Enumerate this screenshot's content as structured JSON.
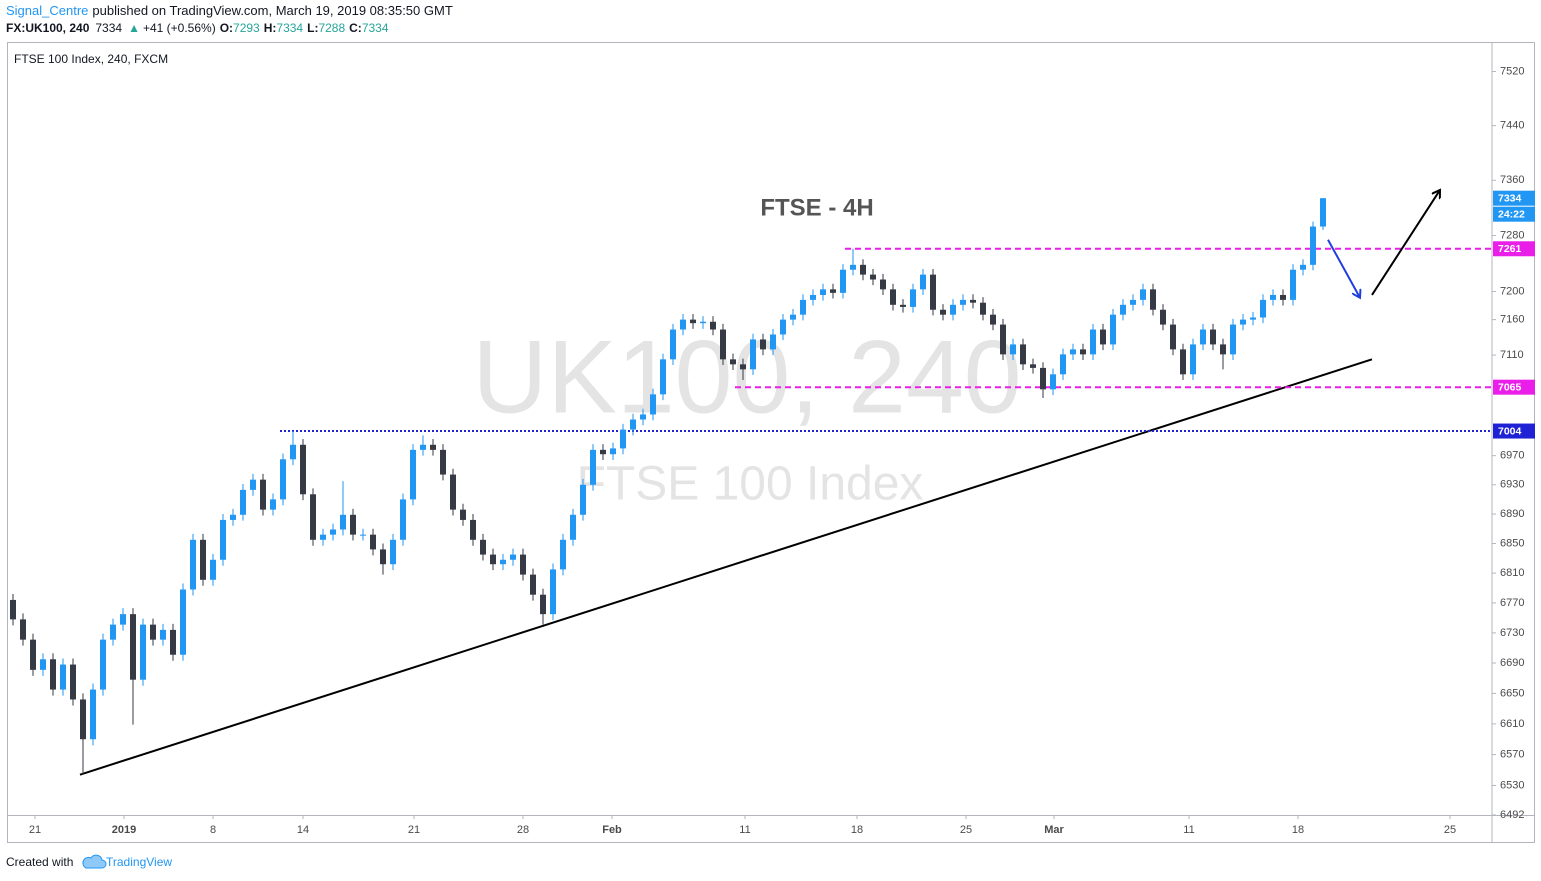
{
  "header": {
    "author": "Signal_Centre",
    "published": "published on TradingView.com, March 19, 2019 08:35:50 GMT",
    "symbol": "FX:UK100, 240",
    "last": 7334,
    "arrow": "▲",
    "change": "+41 (+0.56%)",
    "ohlc": [
      {
        "label": "O:",
        "value": 7293
      },
      {
        "label": "H:",
        "value": 7334
      },
      {
        "label": "L:",
        "value": 7288
      },
      {
        "label": "C:",
        "value": 7334
      }
    ]
  },
  "footer": {
    "text": "Created with",
    "brand": "TradingView"
  },
  "chart_data": {
    "type": "candlestick",
    "title": "FTSE - 4H",
    "series_label": "FTSE 100 Index, 240, FXCM",
    "watermark": [
      "UK100, 240",
      "FTSE 100 Index"
    ],
    "up_color": "#2196f3",
    "down_color": "#363a45",
    "scale": "log",
    "countdown": "24:22",
    "xlim": [
      0,
      148.4
    ],
    "ylim": [
      6492,
      7564
    ],
    "xticks": [
      {
        "value": 2.7,
        "label": "21"
      },
      {
        "value": 11.6,
        "label": "2019"
      },
      {
        "value": 20.5,
        "label": "8"
      },
      {
        "value": 29.5,
        "label": "14"
      },
      {
        "value": 40.6,
        "label": "21"
      },
      {
        "value": 51.5,
        "label": "28"
      },
      {
        "value": 60.4,
        "label": "Feb"
      },
      {
        "value": 73.7,
        "label": "11"
      },
      {
        "value": 84.9,
        "label": "18"
      },
      {
        "value": 95.8,
        "label": "25"
      },
      {
        "value": 104.6,
        "label": "Mar"
      },
      {
        "value": 118.1,
        "label": "11"
      },
      {
        "value": 129,
        "label": "18"
      },
      {
        "value": 144.2,
        "label": "25"
      }
    ],
    "yticks": [
      6492,
      6530,
      6570,
      6610,
      6650,
      6690,
      6730,
      6770,
      6810,
      6850,
      6890,
      6930,
      6970,
      7110,
      7160,
      7200,
      7280,
      7360,
      7440,
      7520
    ],
    "x": [
      0.5,
      1.5,
      2.5,
      3.5,
      4.5,
      5.5,
      6.5,
      7.5,
      8.5,
      9.5,
      10.5,
      11.5,
      12.5,
      13.5,
      14.5,
      15.5,
      16.5,
      17.5,
      18.5,
      19.5,
      20.5,
      21.5,
      22.5,
      23.5,
      24.5,
      25.5,
      26.5,
      27.5,
      28.5,
      29.5,
      30.5,
      31.5,
      32.5,
      33.5,
      34.5,
      35.5,
      36.5,
      37.5,
      38.5,
      39.5,
      40.5,
      41.5,
      42.5,
      43.5,
      44.5,
      45.5,
      46.5,
      47.5,
      48.5,
      49.5,
      50.5,
      51.5,
      52.5,
      53.5,
      54.5,
      55.5,
      56.5,
      57.5,
      58.5,
      59.5,
      60.5,
      61.5,
      62.5,
      63.5,
      64.5,
      65.5,
      66.5,
      67.5,
      68.5,
      69.5,
      70.5,
      71.5,
      72.5,
      73.5,
      74.5,
      75.5,
      76.5,
      77.5,
      78.5,
      79.5,
      80.5,
      81.5,
      82.5,
      83.5,
      84.5,
      85.5,
      86.5,
      87.5,
      88.5,
      89.5,
      90.5,
      91.5,
      92.5,
      93.5,
      94.5,
      95.5,
      96.5,
      97.5,
      98.5,
      99.5,
      100.5,
      101.5,
      102.5,
      103.5,
      104.5,
      105.5,
      106.5,
      107.5,
      108.5,
      109.5,
      110.5,
      111.5,
      112.5,
      113.5,
      114.5,
      115.5,
      116.5,
      117.5,
      118.5,
      119.5,
      120.5,
      121.5,
      122.5,
      123.5,
      124.5,
      125.5,
      126.5,
      127.5,
      128.5,
      129.5,
      130.5,
      131.5
    ],
    "open": [
      6774,
      6748,
      6721,
      6681,
      6695,
      6655,
      6688,
      6642,
      6590,
      6655,
      6721,
      6741,
      6755,
      6668,
      6741,
      6721,
      6734,
      6701,
      6788,
      6855,
      6801,
      6828,
      6882,
      6889,
      6923,
      6937,
      6896,
      6910,
      6965,
      6985,
      6917,
      6855,
      6862,
      6869,
      6889,
      6862,
      6862,
      6842,
      6822,
      6855,
      6910,
      6978,
      6985,
      6978,
      6944,
      6896,
      6882,
      6855,
      6835,
      6822,
      6828,
      6835,
      6808,
      6781,
      6755,
      6815,
      6855,
      6889,
      6930,
      6978,
      6972,
      6980,
      7006,
      7020,
      7027,
      7055,
      7104,
      7146,
      7160,
      7155,
      7157,
      7146,
      7104,
      7097,
      7090,
      7132,
      7118,
      7139,
      7160,
      7167,
      7188,
      7195,
      7203,
      7198,
      7231,
      7238,
      7224,
      7217,
      7203,
      7181,
      7178,
      7203,
      7224,
      7174,
      7167,
      7181,
      7188,
      7184,
      7167,
      7153,
      7111,
      7125,
      7097,
      7092,
      7062,
      7083,
      7111,
      7118,
      7111,
      7146,
      7125,
      7167,
      7181,
      7188,
      7203,
      7174,
      7153,
      7118,
      7083,
      7125,
      7146,
      7125,
      7111,
      7153,
      7160,
      7163,
      7188,
      7195,
      7188,
      7231,
      7238,
      7293
    ],
    "high": [
      6782,
      6756,
      6729,
      6703,
      6703,
      6696,
      6696,
      6650,
      6663,
      6729,
      6749,
      6763,
      6763,
      6749,
      6749,
      6742,
      6742,
      6796,
      6863,
      6863,
      6836,
      6890,
      6897,
      6931,
      6945,
      6945,
      6918,
      6973,
      7004,
      6993,
      6925,
      6870,
      6877,
      6935,
      6897,
      6870,
      6870,
      6850,
      6863,
      6918,
      6986,
      6998,
      6993,
      6986,
      6952,
      6904,
      6890,
      6863,
      6843,
      6836,
      6843,
      6843,
      6816,
      6789,
      6823,
      6863,
      6897,
      6938,
      6986,
      6986,
      6988,
      7014,
      7028,
      7035,
      7063,
      7112,
      7154,
      7168,
      7168,
      7165,
      7165,
      7154,
      7112,
      7105,
      7140,
      7140,
      7147,
      7168,
      7175,
      7196,
      7203,
      7211,
      7211,
      7239,
      7261,
      7246,
      7232,
      7225,
      7211,
      7189,
      7211,
      7232,
      7232,
      7182,
      7189,
      7196,
      7196,
      7192,
      7175,
      7161,
      7133,
      7133,
      7105,
      7100,
      7091,
      7119,
      7126,
      7126,
      7154,
      7154,
      7175,
      7189,
      7196,
      7211,
      7211,
      7182,
      7161,
      7126,
      7133,
      7154,
      7154,
      7133,
      7161,
      7168,
      7171,
      7196,
      7203,
      7203,
      7239,
      7246,
      7300,
      7334
    ],
    "low": [
      6740,
      6713,
      6673,
      6673,
      6647,
      6647,
      6634,
      6544,
      6582,
      6647,
      6713,
      6733,
      6609,
      6660,
      6713,
      6713,
      6693,
      6693,
      6780,
      6793,
      6793,
      6820,
      6874,
      6881,
      6915,
      6888,
      6888,
      6902,
      6957,
      6909,
      6847,
      6847,
      6854,
      6861,
      6854,
      6854,
      6834,
      6808,
      6814,
      6847,
      6902,
      6970,
      6970,
      6936,
      6888,
      6874,
      6847,
      6827,
      6814,
      6814,
      6820,
      6800,
      6773,
      6741,
      6747,
      6807,
      6847,
      6881,
      6922,
      6964,
      6964,
      6972,
      6998,
      7012,
      7019,
      7047,
      7096,
      7138,
      7147,
      7147,
      7138,
      7096,
      7089,
      7075,
      7082,
      7110,
      7110,
      7131,
      7152,
      7159,
      7180,
      7187,
      7190,
      7190,
      7223,
      7216,
      7209,
      7195,
      7173,
      7170,
      7170,
      7195,
      7166,
      7159,
      7159,
      7173,
      7176,
      7159,
      7145,
      7103,
      7103,
      7089,
      7084,
      7050,
      7054,
      7075,
      7103,
      7103,
      7103,
      7117,
      7117,
      7159,
      7173,
      7180,
      7166,
      7145,
      7110,
      7075,
      7075,
      7117,
      7117,
      7090,
      7103,
      7145,
      7152,
      7155,
      7180,
      7180,
      7180,
      7223,
      7230,
      7288
    ],
    "close": [
      6748,
      6721,
      6681,
      6695,
      6655,
      6688,
      6642,
      6590,
      6655,
      6721,
      6741,
      6755,
      6668,
      6741,
      6721,
      6734,
      6701,
      6788,
      6855,
      6801,
      6828,
      6882,
      6889,
      6923,
      6937,
      6896,
      6910,
      6965,
      6985,
      6917,
      6855,
      6862,
      6869,
      6889,
      6862,
      6862,
      6842,
      6822,
      6855,
      6910,
      6978,
      6985,
      6978,
      6944,
      6896,
      6882,
      6855,
      6835,
      6822,
      6828,
      6835,
      6808,
      6781,
      6755,
      6815,
      6855,
      6889,
      6930,
      6978,
      6972,
      6980,
      7006,
      7020,
      7027,
      7055,
      7104,
      7146,
      7160,
      7155,
      7157,
      7146,
      7104,
      7097,
      7090,
      7132,
      7118,
      7139,
      7160,
      7167,
      7188,
      7195,
      7203,
      7198,
      7231,
      7238,
      7224,
      7217,
      7203,
      7181,
      7178,
      7203,
      7224,
      7174,
      7167,
      7181,
      7188,
      7184,
      7167,
      7153,
      7111,
      7125,
      7097,
      7092,
      7062,
      7083,
      7111,
      7118,
      7111,
      7146,
      7125,
      7167,
      7181,
      7188,
      7203,
      7174,
      7153,
      7118,
      7083,
      7125,
      7146,
      7125,
      7111,
      7153,
      7160,
      7163,
      7188,
      7195,
      7188,
      7231,
      7238,
      7293,
      7334
    ],
    "levels": [
      {
        "value": 7261,
        "color": "#e91ee9",
        "style": "dashed",
        "from": 83.7
      },
      {
        "value": 7065,
        "color": "#e91ee9",
        "style": "dashed",
        "from": 72.7
      },
      {
        "value": 7004,
        "color": "#1e22d4",
        "style": "dotted",
        "from": 27.2
      }
    ],
    "trend_line": {
      "x": [
        7.2,
        136.4
      ],
      "y": [
        6544,
        7104
      ],
      "color": "#000000"
    },
    "arrows": [
      {
        "x": [
          132,
          135.2
        ],
        "y": [
          7274,
          7191
        ],
        "color": "#1f3fdf"
      },
      {
        "x": [
          136.4,
          143.2
        ],
        "y": [
          7195,
          7346
        ],
        "color": "#000000"
      }
    ]
  }
}
